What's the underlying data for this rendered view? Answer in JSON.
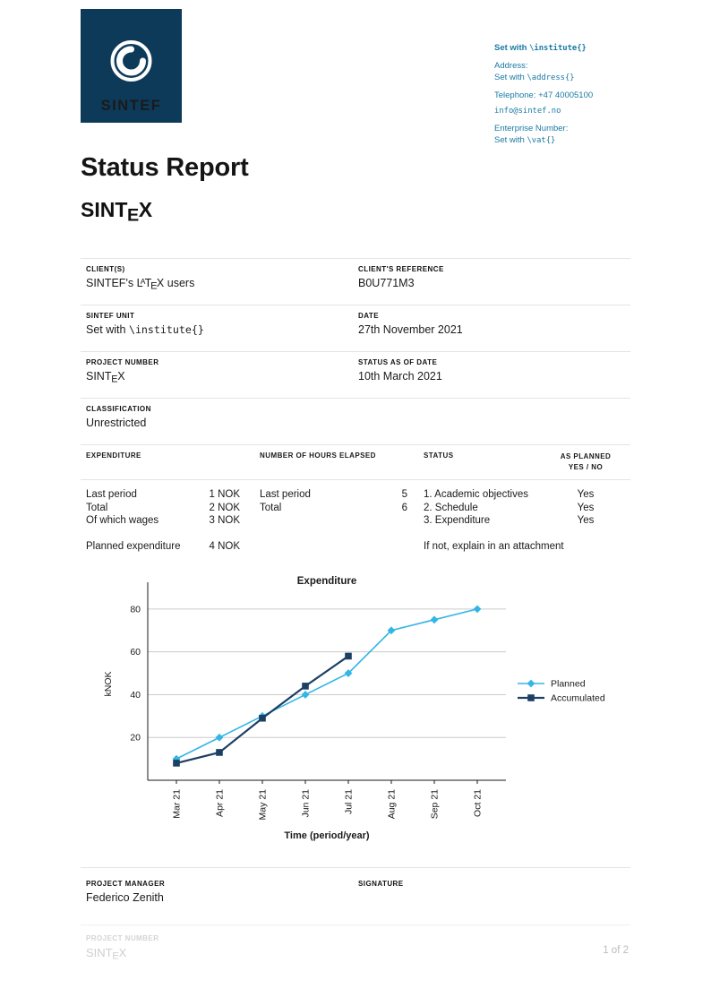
{
  "colors": {
    "navy": "#0e3a5a",
    "teal": "#1a7aa3",
    "planned": "#33b5e5",
    "accumulated": "#1c3f63"
  },
  "logo": {
    "text": "SINTEF"
  },
  "contact": {
    "institute_bold": "Set with",
    "institute_code": "\\institute{}",
    "address_label": "Address:",
    "address_prefix": "Set with",
    "address_code": "\\address{}",
    "telephone": "Telephone: +47 40005100",
    "email": "info@sintef.no",
    "enterprise_label": "Enterprise Number:",
    "vat_prefix": "Set with",
    "vat_code": "\\vat{}"
  },
  "title": "Status Report",
  "wordmarks": {
    "sintex": {
      "pre": "SINT",
      "e": "E",
      "x": "X"
    },
    "latex": {
      "l": "L",
      "a": "A",
      "t": "T",
      "e": "E",
      "x": "X"
    }
  },
  "info": {
    "clients_label": "CLIENT(S)",
    "clients_prefix": "SINTEF's",
    "clients_suffix": "users",
    "reference_label": "CLIENT'S REFERENCE",
    "reference_value": "B0U771M3",
    "unit_label": "SINTEF UNIT",
    "unit_prefix": "Set with",
    "unit_code": "\\institute{}",
    "date_label": "DATE",
    "date_value": "27th November 2021",
    "project_label": "PROJECT NUMBER",
    "status_date_label": "STATUS AS OF DATE",
    "status_date_value": "10th March 2021",
    "classification_label": "CLASSIFICATION",
    "classification_value": "Unrestricted"
  },
  "table": {
    "expenditure_header": "EXPENDITURE",
    "hours_header": "NUMBER OF HOURS ELAPSED",
    "status_header": "STATUS",
    "planned_header_line1": "AS PLANNED",
    "planned_header_line2": "YES / NO",
    "expenditure_rows": [
      {
        "label": "Last period",
        "value": "1 NOK"
      },
      {
        "label": "Total",
        "value": "2 NOK"
      },
      {
        "label": "Of which wages",
        "value": "3 NOK"
      }
    ],
    "planned_expenditure": {
      "label": "Planned expenditure",
      "value": "4 NOK"
    },
    "hours_rows": [
      {
        "label": "Last period",
        "value": "5"
      },
      {
        "label": "Total",
        "value": "6"
      }
    ],
    "status_rows": [
      {
        "label": "1. Academic objectives",
        "value": "Yes"
      },
      {
        "label": "2. Schedule",
        "value": "Yes"
      },
      {
        "label": "3. Expenditure",
        "value": "Yes"
      }
    ],
    "status_note": "If not, explain in an attachment"
  },
  "chart_data": {
    "type": "line",
    "title": "Expenditure",
    "xlabel": "Time (period/year)",
    "ylabel": "kNOK",
    "categories": [
      "Mar 21",
      "Apr 21",
      "May 21",
      "Jun 21",
      "Jul 21",
      "Aug 21",
      "Sep 21",
      "Oct 21"
    ],
    "series": [
      {
        "name": "Planned",
        "color": "#33b5e5",
        "marker": "diamond",
        "values": [
          10,
          20,
          30,
          40,
          50,
          70,
          75,
          80
        ]
      },
      {
        "name": "Accumulated",
        "color": "#1c3f63",
        "marker": "square",
        "values": [
          8,
          13,
          29,
          44,
          58
        ]
      }
    ],
    "yticks": [
      20,
      40,
      60,
      80
    ],
    "ylim": [
      0,
      90
    ],
    "grid": true,
    "legend_position": "right"
  },
  "footer": {
    "manager_label": "PROJECT MANAGER",
    "manager_value": "Federico Zenith",
    "signature_label": "SIGNATURE",
    "project_label": "PROJECT NUMBER",
    "page": "1 of 2"
  }
}
